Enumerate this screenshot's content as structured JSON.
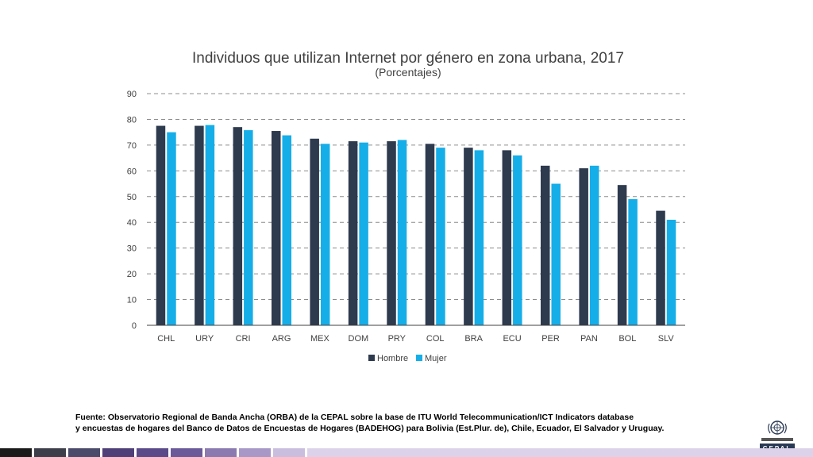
{
  "chart_data": {
    "type": "bar",
    "title": "Individuos que utilizan Internet por género en zona urbana, 2017",
    "subtitle": "(Porcentajes)",
    "categories": [
      "CHL",
      "URY",
      "CRI",
      "ARG",
      "MEX",
      "DOM",
      "PRY",
      "COL",
      "BRA",
      "ECU",
      "PER",
      "PAN",
      "BOL",
      "SLV"
    ],
    "series": [
      {
        "name": "Hombre",
        "color": "#2e3a4e",
        "values": [
          77.5,
          77.5,
          77.0,
          75.5,
          72.5,
          71.5,
          71.5,
          70.5,
          69.0,
          68.0,
          62.0,
          61.0,
          54.5,
          44.5
        ]
      },
      {
        "name": "Mujer",
        "color": "#16aee8",
        "values": [
          75.0,
          77.8,
          75.8,
          73.8,
          70.5,
          71.0,
          72.0,
          69.0,
          68.0,
          66.0,
          55.0,
          62.0,
          49.0,
          41.0
        ]
      }
    ],
    "ylim": [
      0,
      90
    ],
    "yticks": [
      0,
      10,
      20,
      30,
      40,
      50,
      60,
      70,
      80,
      90
    ],
    "grid": true,
    "legend": "bottom"
  },
  "source": {
    "line1": "Fuente: Observatorio Regional de Banda Ancha (ORBA) de la CEPAL sobre la base de ITU World Telecommunication/ICT Indicators database",
    "line2": "y encuestas de hogares del Banco de Datos de Encuestas de Hogares (BADEHOG) para Bolivia (Est.Plur. de), Chile, Ecuador, El Salvador y Uruguay."
  },
  "logo": {
    "name": "CEPAL",
    "color": "#2a3a55"
  },
  "footer": {
    "colors": [
      "#1a1a1a",
      "#3c3f4a",
      "#4a4a6a",
      "#4e3f78",
      "#5a4a8a",
      "#6a5a9a",
      "#8a7ab0",
      "#a898c8",
      "#cabedf",
      "#dcd3ea"
    ]
  }
}
